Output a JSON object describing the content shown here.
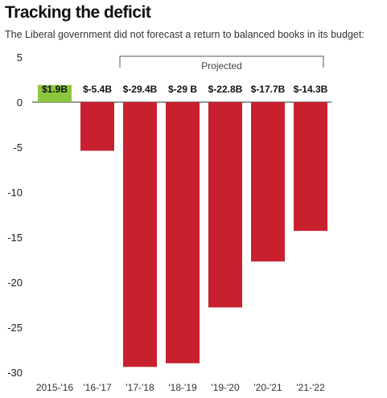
{
  "chart_data": {
    "type": "bar",
    "title": "Tracking the deficit",
    "subtitle": "The Liberal government did not forecast a return to balanced books in its budget:",
    "categories": [
      "2015-'16",
      "'16-'17",
      "'17-'18",
      "'18-'19",
      "'19-'20",
      "'20-'21",
      "'21-'22"
    ],
    "values": [
      1.9,
      -5.4,
      -29.4,
      -29,
      -22.8,
      -17.7,
      -14.3
    ],
    "data_labels": [
      "$1.9B",
      "$-5.4B",
      "$-29.4B",
      "$-29 B",
      "$-22.8B",
      "$-17.7B",
      "$-14.3B"
    ],
    "ylim": [
      -30,
      5
    ],
    "yticks": [
      5,
      0,
      -5,
      -10,
      -15,
      -20,
      -25,
      -30
    ],
    "grid": false,
    "colors": {
      "positive": "#8cc63f",
      "negative": "#c8202f",
      "zero_line": "#333333",
      "text": "#222222"
    },
    "annotation": {
      "label": "Projected",
      "from_category": 2,
      "to_category": 6
    }
  }
}
